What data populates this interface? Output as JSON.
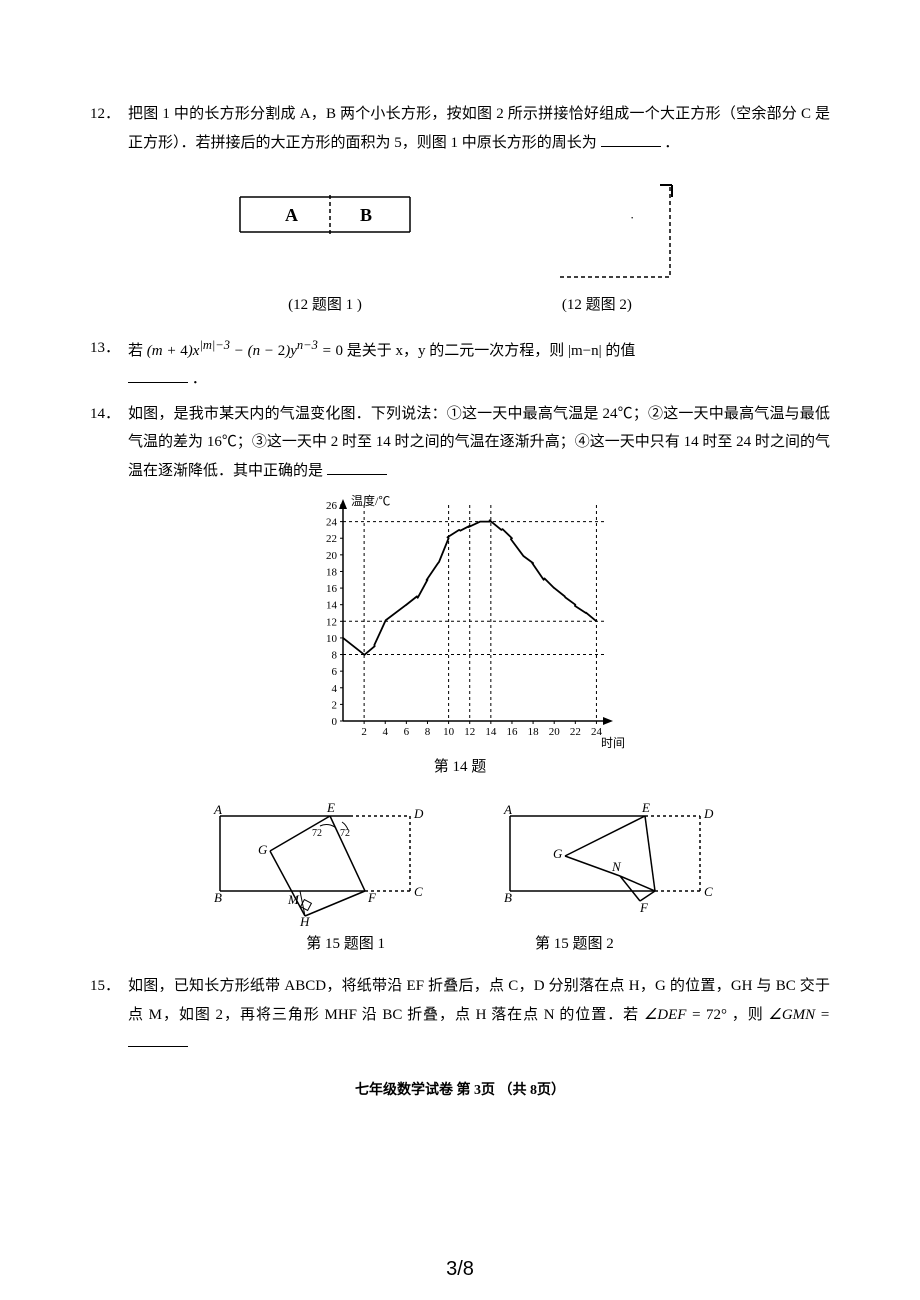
{
  "q12": {
    "num": "12．",
    "text_a": "把图 1 中的长方形分割成 A，B 两个小长方形，按如图 2 所示拼接恰好组成一个大正方形（空余部分 C 是正方形）．若拼接后的大正方形的面积为 5，则图 1 中原长方形的周长为",
    "text_b": "．",
    "fig1_A": "A",
    "fig1_B": "B",
    "caption1": "(12 题图 1 )",
    "caption2": "(12 题图 2)"
  },
  "q13": {
    "num": "13．",
    "eq_pre": "若 ",
    "eq": "(m + 4)x^{|m|−3} − (n − 2)y^{n−3} = 0",
    "eq_post": " 是关于 x，y 的二元一次方程，则 |m−n| 的值",
    "tail": "．"
  },
  "q14": {
    "num": "14．",
    "text_a": "如图，是我市某天内的气温变化图．下列说法：①这一天中最高气温是 24℃；②这一天中最高气温与最低气温的差为 16℃；③这一天中 2 时至 14 时之间的气温在逐渐升高；④这一天中只有 14 时至 24 时之间的气温在逐渐降低．其中正确的是",
    "chart": {
      "ylabel": "温度/℃",
      "xlabel": "时间/时",
      "y_ticks": [
        0,
        2,
        4,
        6,
        8,
        10,
        12,
        14,
        16,
        18,
        20,
        22,
        24,
        26
      ],
      "x_ticks": [
        2,
        4,
        6,
        8,
        10,
        12,
        14,
        16,
        18,
        20,
        22,
        24
      ],
      "series": [
        {
          "x": 0,
          "y": 10
        },
        {
          "x": 2,
          "y": 8
        },
        {
          "x": 3,
          "y": 9
        },
        {
          "x": 4,
          "y": 12
        },
        {
          "x": 6,
          "y": 14
        },
        {
          "x": 7,
          "y": 15
        },
        {
          "x": 8,
          "y": 17
        },
        {
          "x": 9,
          "y": 19
        },
        {
          "x": 10,
          "y": 22
        },
        {
          "x": 11,
          "y": 23
        },
        {
          "x": 12,
          "y": 23.5
        },
        {
          "x": 13,
          "y": 24
        },
        {
          "x": 14,
          "y": 24
        },
        {
          "x": 15,
          "y": 23
        },
        {
          "x": 16,
          "y": 22
        },
        {
          "x": 17,
          "y": 20
        },
        {
          "x": 18,
          "y": 19
        },
        {
          "x": 19,
          "y": 17
        },
        {
          "x": 20,
          "y": 16
        },
        {
          "x": 21,
          "y": 15
        },
        {
          "x": 22,
          "y": 14
        },
        {
          "x": 23,
          "y": 13
        },
        {
          "x": 24,
          "y": 12
        }
      ],
      "dashed_h": [
        8,
        12,
        24
      ],
      "dashed_v": [
        2,
        10,
        12,
        14,
        24
      ],
      "ylim": [
        0,
        26
      ],
      "xlim": [
        0,
        25
      ],
      "stroke": "#000",
      "bg": "#fff",
      "font_size": 11
    },
    "caption": "第 14 题"
  },
  "q15": {
    "num": "15．",
    "text_a": "如图，已知长方形纸带 ABCD，将纸带沿 EF 折叠后，点 C，D 分别落在点 H，G 的位置，GH 与 BC 交于点 M，如图 2，再将三角形 MHF 沿 BC 折叠，点 H 落在点 N 的位置．若 ",
    "eq": "∠DEF = 72°",
    "text_b": "，则 ",
    "eq2": "∠GMN =",
    "caption1": "第 15 题图 1",
    "caption2": "第 15 题图 2",
    "labels1": {
      "A": "A",
      "B": "B",
      "C": "C",
      "D": "D",
      "E": "E",
      "F": "F",
      "G": "G",
      "H": "H",
      "M": "M",
      "ang1": "72",
      "ang2": "72"
    },
    "labels2": {
      "A": "A",
      "B": "B",
      "C": "C",
      "D": "D",
      "E": "E",
      "F": "F",
      "G": "G",
      "N": "N"
    }
  },
  "footer": "七年级数学试卷  第 3页   （共 8页）",
  "counter": "3/8"
}
